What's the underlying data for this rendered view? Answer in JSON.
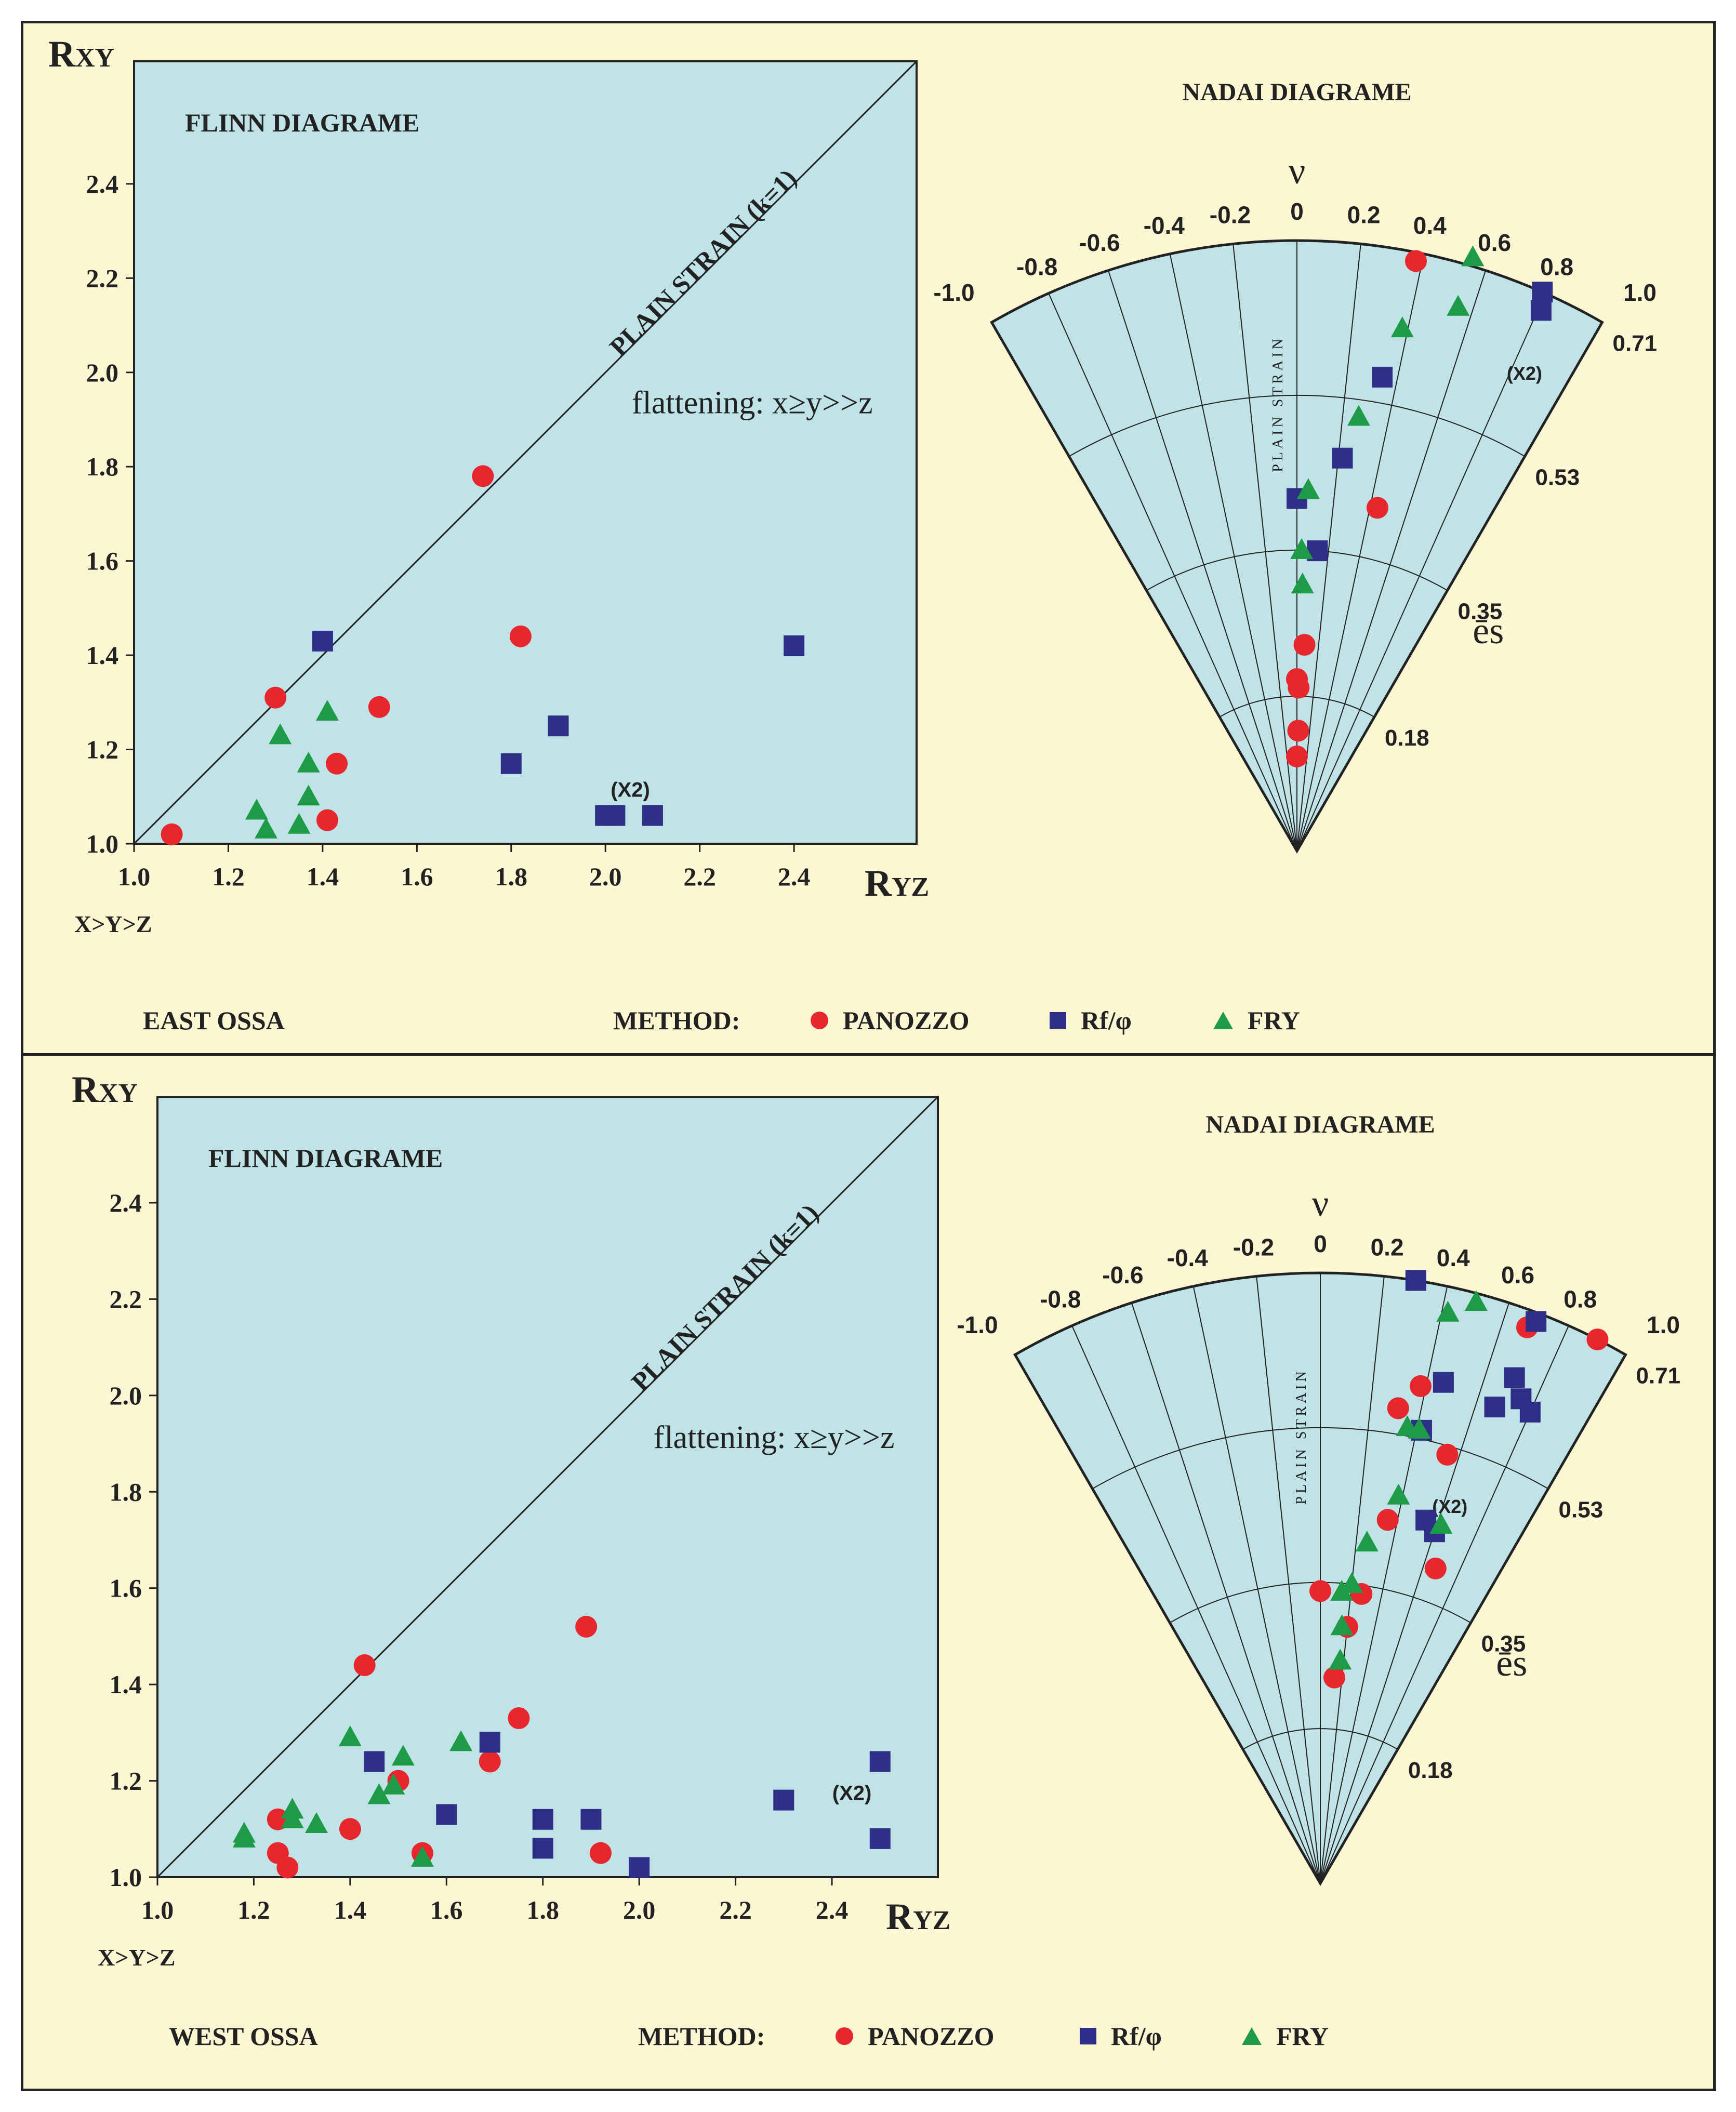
{
  "colors": {
    "background": "#fdf6d3",
    "plot_fill": "#bfe3e6",
    "panozzo": "#e8262d",
    "rf_phi": "#2e3088",
    "fry": "#1e9b47",
    "line": "#222222"
  },
  "legend": {
    "method_label": "METHOD:",
    "panozzo_label": "PANOZZO",
    "rf_label": "Rf/φ",
    "fry_label": "FRY"
  },
  "chart_data": [
    {
      "id": "east",
      "region_label": "EAST  OSSA",
      "flinn": {
        "type": "scatter",
        "title": "FLINN DIAGRAME",
        "ylabel_main": "R",
        "ylabel_sub": "XY",
        "xlabel_main": "R",
        "xlabel_sub": "YZ",
        "order_label": "X>Y>Z",
        "xlim": [
          1.0,
          2.66
        ],
        "ylim": [
          1.0,
          2.66
        ],
        "x_ticks": [
          "1.0",
          "1.2",
          "1.4",
          "1.6",
          "1.8",
          "2.0",
          "2.2",
          "2.4"
        ],
        "y_ticks": [
          "1.0",
          "1.2",
          "1.4",
          "1.6",
          "1.8",
          "2.0",
          "2.2",
          "2.4"
        ],
        "line_label": "PLAIN STRAIN (k=1)",
        "region_annotation": "flattening: x≥y>>z",
        "annotations": [
          {
            "text": "(X2)",
            "x": 2.0,
            "y": 1.1
          }
        ],
        "series": [
          {
            "name": "PANOZZO",
            "marker": "circle",
            "points": [
              [
                1.08,
                1.02
              ],
              [
                1.3,
                1.31
              ],
              [
                1.41,
                1.05
              ],
              [
                1.43,
                1.17
              ],
              [
                1.52,
                1.29
              ],
              [
                1.74,
                1.78
              ],
              [
                1.82,
                1.44
              ]
            ]
          },
          {
            "name": "Rf/φ",
            "marker": "square",
            "points": [
              [
                1.4,
                1.43
              ],
              [
                1.8,
                1.17
              ],
              [
                1.9,
                1.25
              ],
              [
                2.0,
                1.06
              ],
              [
                2.02,
                1.06
              ],
              [
                2.1,
                1.06
              ],
              [
                2.4,
                1.42
              ]
            ]
          },
          {
            "name": "FRY",
            "marker": "triangle",
            "points": [
              [
                1.26,
                1.07
              ],
              [
                1.28,
                1.03
              ],
              [
                1.31,
                1.23
              ],
              [
                1.35,
                1.04
              ],
              [
                1.37,
                1.1
              ],
              [
                1.37,
                1.17
              ],
              [
                1.41,
                1.28
              ]
            ]
          }
        ]
      },
      "nadai": {
        "type": "scatter",
        "title": "NADAI DIAGRAME",
        "nu_label": "ν",
        "es_label": "ēs",
        "plain_strain_label": "PLAIN  STRAIN",
        "nu_ticks": [
          "-1.0",
          "-0.8",
          "-0.6",
          "-0.4",
          "-0.2",
          "0",
          "0.2",
          "0.4",
          "0.6",
          "0.8",
          "1.0"
        ],
        "es_ticks": [
          "0.18",
          "0.35",
          "0.53",
          "0.71"
        ],
        "es_max": 0.71,
        "annotations": [
          {
            "text": "(X2)",
            "nu": 0.8,
            "es": 0.6
          }
        ],
        "series": [
          {
            "name": "PANOZZO",
            "marker": "circle",
            "points": [
              [
                0.0,
                0.11
              ],
              [
                0.0,
                0.2
              ],
              [
                0.02,
                0.19
              ],
              [
                0.02,
                0.14
              ],
              [
                0.07,
                0.24
              ],
              [
                0.44,
                0.41
              ],
              [
                0.38,
                0.7
              ]
            ]
          },
          {
            "name": "Rf/φ",
            "marker": "square",
            "points": [
              [
                0.0,
                0.41
              ],
              [
                0.13,
                0.35
              ],
              [
                0.22,
                0.46
              ],
              [
                0.34,
                0.56
              ],
              [
                0.79,
                0.71
              ],
              [
                0.81,
                0.69
              ]
            ]
          },
          {
            "name": "FRY",
            "marker": "triangle",
            "points": [
              [
                0.03,
                0.35
              ],
              [
                0.04,
                0.31
              ],
              [
                0.06,
                0.42
              ],
              [
                0.27,
                0.51
              ],
              [
                0.38,
                0.62
              ],
              [
                0.55,
                0.66
              ],
              [
                0.55,
                0.72
              ]
            ]
          }
        ]
      }
    },
    {
      "id": "west",
      "region_label": "WEST  OSSA",
      "flinn": {
        "type": "scatter",
        "title": "FLINN DIAGRAME",
        "ylabel_main": "R",
        "ylabel_sub": "XY",
        "xlabel_main": "R",
        "xlabel_sub": "YZ",
        "order_label": "X>Y>Z",
        "xlim": [
          1.0,
          2.62
        ],
        "ylim": [
          1.0,
          2.62
        ],
        "x_ticks": [
          "1.0",
          "1.2",
          "1.4",
          "1.6",
          "1.8",
          "2.0",
          "2.2",
          "2.4"
        ],
        "y_ticks": [
          "1.0",
          "1.2",
          "1.4",
          "1.6",
          "1.8",
          "2.0",
          "2.2",
          "2.4"
        ],
        "line_label": "PLAIN STRAIN (k=1)",
        "region_annotation": "flattening: x≥y>>z",
        "annotations": [
          {
            "text": "(X2)",
            "x": 2.39,
            "y": 1.16
          }
        ],
        "series": [
          {
            "name": "PANOZZO",
            "marker": "circle",
            "points": [
              [
                1.25,
                1.05
              ],
              [
                1.25,
                1.12
              ],
              [
                1.27,
                1.02
              ],
              [
                1.4,
                1.1
              ],
              [
                1.43,
                1.44
              ],
              [
                1.5,
                1.2
              ],
              [
                1.55,
                1.05
              ],
              [
                1.69,
                1.24
              ],
              [
                1.75,
                1.33
              ],
              [
                1.89,
                1.52
              ],
              [
                1.92,
                1.05
              ]
            ]
          },
          {
            "name": "Rf/φ",
            "marker": "square",
            "points": [
              [
                1.45,
                1.24
              ],
              [
                1.6,
                1.13
              ],
              [
                1.69,
                1.28
              ],
              [
                1.8,
                1.06
              ],
              [
                1.8,
                1.12
              ],
              [
                1.9,
                1.12
              ],
              [
                2.0,
                1.02
              ],
              [
                2.3,
                1.16
              ],
              [
                2.5,
                1.08
              ],
              [
                2.5,
                1.24
              ]
            ]
          },
          {
            "name": "FRY",
            "marker": "triangle",
            "points": [
              [
                1.18,
                1.08
              ],
              [
                1.18,
                1.09
              ],
              [
                1.28,
                1.12
              ],
              [
                1.28,
                1.14
              ],
              [
                1.33,
                1.11
              ],
              [
                1.4,
                1.29
              ],
              [
                1.46,
                1.17
              ],
              [
                1.49,
                1.19
              ],
              [
                1.51,
                1.25
              ],
              [
                1.55,
                1.04
              ],
              [
                1.63,
                1.28
              ]
            ]
          }
        ]
      },
      "nadai": {
        "type": "scatter",
        "title": "NADAI DIAGRAME",
        "nu_label": "ν",
        "es_label": "ēs",
        "plain_strain_label": "PLAIN  STRAIN",
        "nu_ticks": [
          "-1.0",
          "-0.8",
          "-0.6",
          "-0.4",
          "-0.2",
          "0",
          "0.2",
          "0.4",
          "0.6",
          "0.8",
          "1.0"
        ],
        "es_ticks": [
          "0.18",
          "0.35",
          "0.53",
          "0.71"
        ],
        "es_max": 0.71,
        "annotations": [
          {
            "text": "(X2)",
            "nu": 0.56,
            "es": 0.45
          }
        ],
        "series": [
          {
            "name": "PANOZZO",
            "marker": "circle",
            "points": [
              [
                0.0,
                0.34
              ],
              [
                0.13,
                0.24
              ],
              [
                0.2,
                0.3
              ],
              [
                0.27,
                0.34
              ],
              [
                0.35,
                0.43
              ],
              [
                0.31,
                0.56
              ],
              [
                0.67,
                0.39
              ],
              [
                0.55,
                0.52
              ],
              [
                0.38,
                0.59
              ],
              [
                0.68,
                0.69
              ],
              [
                0.9,
                0.71
              ]
            ]
          },
          {
            "name": "Rf/φ",
            "marker": "square",
            "points": [
              [
                0.3,
                0.71
              ],
              [
                0.46,
                0.6
              ],
              [
                0.42,
                0.54
              ],
              [
                0.54,
                0.44
              ],
              [
                0.6,
                0.43
              ],
              [
                0.67,
                0.59
              ],
              [
                0.7,
                0.63
              ],
              [
                0.75,
                0.61
              ],
              [
                0.8,
                0.6
              ],
              [
                0.7,
                0.7
              ]
            ]
          },
          {
            "name": "FRY",
            "marker": "triangle",
            "points": [
              [
                0.16,
                0.3
              ],
              [
                0.17,
                0.26
              ],
              [
                0.14,
                0.34
              ],
              [
                0.2,
                0.35
              ],
              [
                0.26,
                0.4
              ],
              [
                0.38,
                0.46
              ],
              [
                0.36,
                0.54
              ],
              [
                0.41,
                0.54
              ],
              [
                0.42,
                0.68
              ],
              [
                0.5,
                0.7
              ],
              [
                0.62,
                0.44
              ]
            ]
          }
        ]
      }
    }
  ]
}
